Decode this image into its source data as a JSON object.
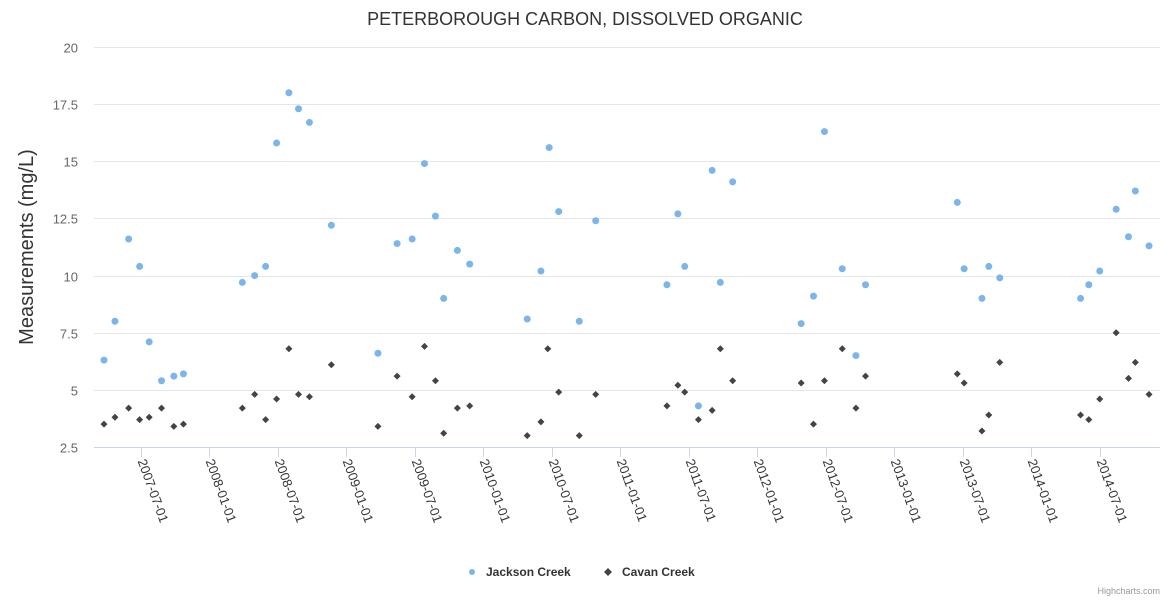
{
  "chart_data": {
    "type": "scatter",
    "title": "PETERBOROUGH CARBON, DISSOLVED ORGANIC",
    "xlabel": "",
    "ylabel": "Measurements (mg/L)",
    "x_unit": "decimal year",
    "xlim": [
      2007.157,
      2014.94
    ],
    "ylim": [
      2.5,
      20
    ],
    "yticks": [
      2.5,
      5,
      7.5,
      10,
      12.5,
      15,
      17.5,
      20
    ],
    "ytick_labels": [
      "2.5",
      "5",
      "7.5",
      "10",
      "12.5",
      "15",
      "17.5",
      "20"
    ],
    "xticks": [
      2007.5,
      2008.0,
      2008.5,
      2009.0,
      2009.5,
      2010.0,
      2010.5,
      2011.0,
      2011.5,
      2012.0,
      2012.5,
      2013.0,
      2013.5,
      2014.0,
      2014.5
    ],
    "xtick_labels": [
      "2007-07-01",
      "2008-01-01",
      "2008-07-01",
      "2009-01-01",
      "2009-07-01",
      "2010-01-01",
      "2010-07-01",
      "2011-01-01",
      "2011-07-01",
      "2012-01-01",
      "2012-07-01",
      "2013-01-01",
      "2013-07-01",
      "2014-01-01",
      "2014-07-01"
    ],
    "grid": true,
    "legend_position": "bottom-center",
    "series": [
      {
        "name": "Jackson Creek",
        "color": "#7cb5ec",
        "marker": "circle",
        "x": [
          2007.23,
          2007.31,
          2007.41,
          2007.49,
          2007.56,
          2007.65,
          2007.74,
          2007.81,
          2008.24,
          2008.33,
          2008.41,
          2008.49,
          2008.58,
          2008.65,
          2008.73,
          2008.89,
          2009.23,
          2009.37,
          2009.48,
          2009.57,
          2009.65,
          2009.71,
          2009.81,
          2009.9,
          2010.32,
          2010.42,
          2010.48,
          2010.55,
          2010.7,
          2010.82,
          2011.34,
          2011.42,
          2011.47,
          2011.57,
          2011.67,
          2011.73,
          2011.82,
          2012.32,
          2012.41,
          2012.49,
          2012.62,
          2012.72,
          2012.79,
          2013.46,
          2013.51,
          2013.64,
          2013.69,
          2013.77,
          2014.36,
          2014.42,
          2014.5,
          2014.62,
          2014.71,
          2014.76,
          2014.86
        ],
        "y": [
          6.3,
          8.0,
          11.6,
          10.4,
          7.1,
          5.4,
          5.6,
          5.7,
          9.7,
          10.0,
          10.4,
          15.8,
          18.0,
          17.3,
          16.7,
          12.2,
          6.6,
          11.4,
          11.6,
          14.9,
          12.6,
          9.0,
          11.1,
          10.5,
          8.1,
          10.2,
          15.6,
          12.8,
          8.0,
          12.4,
          9.6,
          12.7,
          10.4,
          4.3,
          14.6,
          9.7,
          14.1,
          7.9,
          9.1,
          16.3,
          10.3,
          6.5,
          9.6,
          13.2,
          10.3,
          9.0,
          10.4,
          9.9,
          9.0,
          9.6,
          10.2,
          12.9,
          11.7,
          13.7,
          11.3
        ]
      },
      {
        "name": "Cavan Creek",
        "color": "#434348",
        "marker": "diamond",
        "x": [
          2007.23,
          2007.31,
          2007.41,
          2007.49,
          2007.56,
          2007.65,
          2007.74,
          2007.81,
          2008.24,
          2008.33,
          2008.41,
          2008.49,
          2008.58,
          2008.65,
          2008.73,
          2008.89,
          2009.23,
          2009.37,
          2009.48,
          2009.57,
          2009.65,
          2009.71,
          2009.81,
          2009.9,
          2010.32,
          2010.42,
          2010.47,
          2010.55,
          2010.7,
          2010.82,
          2011.34,
          2011.42,
          2011.47,
          2011.57,
          2011.67,
          2011.73,
          2011.82,
          2012.32,
          2012.41,
          2012.49,
          2012.62,
          2012.72,
          2012.79,
          2013.46,
          2013.51,
          2013.64,
          2013.69,
          2013.77,
          2014.36,
          2014.42,
          2014.5,
          2014.62,
          2014.71,
          2014.76,
          2014.86
        ],
        "y": [
          3.5,
          3.8,
          4.2,
          3.7,
          3.8,
          4.2,
          3.4,
          3.5,
          4.2,
          4.8,
          3.7,
          4.6,
          6.8,
          4.8,
          4.7,
          6.1,
          3.4,
          5.6,
          4.7,
          6.9,
          5.4,
          3.1,
          4.2,
          4.3,
          3.0,
          3.6,
          6.8,
          4.9,
          3.0,
          4.8,
          4.3,
          5.2,
          4.9,
          3.7,
          4.1,
          6.8,
          5.4,
          5.3,
          3.5,
          5.4,
          6.8,
          4.2,
          5.6,
          5.7,
          5.3,
          3.2,
          3.9,
          6.2,
          3.9,
          3.7,
          4.6,
          7.5,
          5.5,
          6.2,
          4.8
        ]
      }
    ]
  },
  "credits": "Highcharts.com"
}
